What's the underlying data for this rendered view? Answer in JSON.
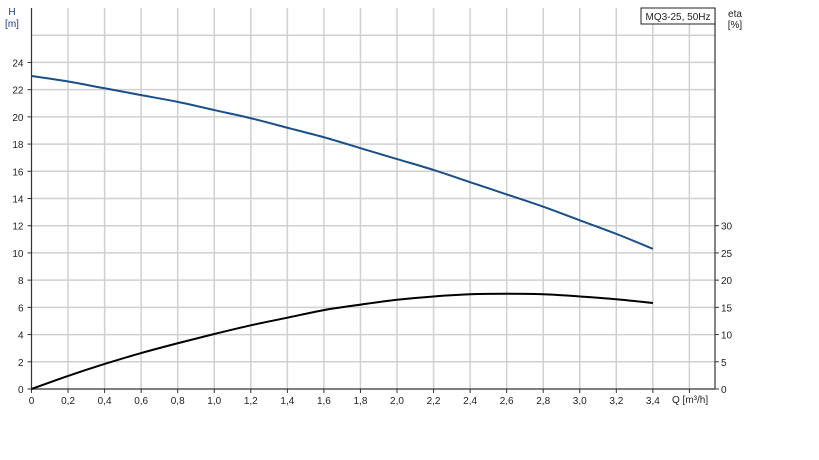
{
  "chart_data": {
    "type": "line",
    "title": "MQ3-25, 50Hz",
    "xlabel": "Q [m³/h]",
    "ylabel": "H",
    "ylabel_unit": "[m]",
    "y2label": "eta",
    "y2label_unit": "[%]",
    "xlim": [
      0,
      3.74
    ],
    "ylim": [
      0,
      28
    ],
    "y2lim": [
      0,
      70
    ],
    "grid": true,
    "x_ticks": [
      "0",
      "0,2",
      "0,4",
      "0,6",
      "0,8",
      "1,0",
      "1,2",
      "1,4",
      "1,6",
      "1,8",
      "2,0",
      "2,2",
      "2,4",
      "2,6",
      "2,8",
      "3,0",
      "3,2",
      "3,4"
    ],
    "y_ticks": [
      "0",
      "2",
      "4",
      "6",
      "8",
      "10",
      "12",
      "14",
      "16",
      "18",
      "20",
      "22",
      "24"
    ],
    "y2_ticks": [
      "0",
      "5",
      "10",
      "15",
      "20",
      "25",
      "30"
    ],
    "x": [
      0,
      0.2,
      0.4,
      0.6,
      0.8,
      1.0,
      1.2,
      1.4,
      1.6,
      1.8,
      2.0,
      2.2,
      2.4,
      2.6,
      2.8,
      3.0,
      3.2,
      3.4
    ],
    "series": [
      {
        "axis": "left",
        "color": "#1a4f8a",
        "values": [
          23.0,
          22.6,
          22.1,
          21.6,
          21.1,
          20.5,
          19.9,
          19.2,
          18.5,
          17.7,
          16.9,
          16.1,
          15.2,
          14.3,
          13.4,
          12.4,
          11.4,
          10.3
        ]
      },
      {
        "axis": "right",
        "color": "#000000",
        "values": [
          0,
          2.4,
          4.6,
          6.6,
          8.4,
          10.1,
          11.7,
          13.1,
          14.5,
          15.5,
          16.4,
          17.0,
          17.4,
          17.5,
          17.4,
          17.0,
          16.5,
          15.8
        ]
      }
    ]
  }
}
